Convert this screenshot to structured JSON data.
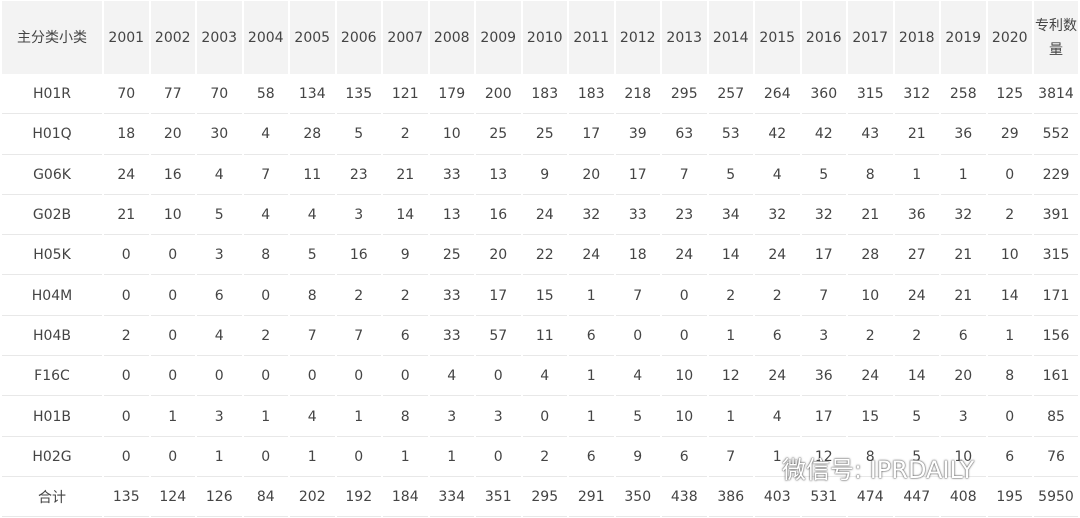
{
  "table": {
    "header": [
      "主分类小类",
      "2001",
      "2002",
      "2003",
      "2004",
      "2005",
      "2006",
      "2007",
      "2008",
      "2009",
      "2010",
      "2011",
      "2012",
      "2013",
      "2014",
      "2015",
      "2016",
      "2017",
      "2018",
      "2019",
      "2020",
      "专利数量"
    ],
    "rows": [
      [
        "H01R",
        70,
        77,
        70,
        58,
        134,
        135,
        121,
        179,
        200,
        183,
        183,
        218,
        295,
        257,
        264,
        360,
        315,
        312,
        258,
        125,
        3814
      ],
      [
        "H01Q",
        18,
        20,
        30,
        4,
        28,
        5,
        2,
        10,
        25,
        25,
        17,
        39,
        63,
        53,
        42,
        42,
        43,
        21,
        36,
        29,
        552
      ],
      [
        "G06K",
        24,
        16,
        4,
        7,
        11,
        23,
        21,
        33,
        13,
        9,
        20,
        17,
        7,
        5,
        4,
        5,
        8,
        1,
        1,
        0,
        229
      ],
      [
        "G02B",
        21,
        10,
        5,
        4,
        4,
        3,
        14,
        13,
        16,
        24,
        32,
        33,
        23,
        34,
        32,
        32,
        21,
        36,
        32,
        2,
        391
      ],
      [
        "H05K",
        0,
        0,
        3,
        8,
        5,
        16,
        9,
        25,
        20,
        22,
        24,
        18,
        24,
        14,
        24,
        17,
        28,
        27,
        21,
        10,
        315
      ],
      [
        "H04M",
        0,
        0,
        6,
        0,
        8,
        2,
        2,
        33,
        17,
        15,
        1,
        7,
        0,
        2,
        2,
        7,
        10,
        24,
        21,
        14,
        171
      ],
      [
        "H04B",
        2,
        0,
        4,
        2,
        7,
        7,
        6,
        33,
        57,
        11,
        6,
        0,
        0,
        1,
        6,
        3,
        2,
        2,
        6,
        1,
        156
      ],
      [
        "F16C",
        0,
        0,
        0,
        0,
        0,
        0,
        0,
        4,
        0,
        4,
        1,
        4,
        10,
        12,
        24,
        36,
        24,
        14,
        20,
        8,
        161
      ],
      [
        "H01B",
        0,
        1,
        3,
        1,
        4,
        1,
        8,
        3,
        3,
        0,
        1,
        5,
        10,
        1,
        4,
        17,
        15,
        5,
        3,
        0,
        85
      ],
      [
        "H02G",
        0,
        0,
        1,
        0,
        1,
        0,
        1,
        1,
        0,
        2,
        6,
        9,
        6,
        7,
        1,
        12,
        8,
        5,
        10,
        6,
        76
      ],
      [
        "合计",
        135,
        124,
        126,
        84,
        202,
        192,
        184,
        334,
        351,
        295,
        291,
        350,
        438,
        386,
        403,
        531,
        474,
        447,
        408,
        195,
        5950
      ]
    ]
  },
  "watermark": "微信号: IPRDAILY"
}
